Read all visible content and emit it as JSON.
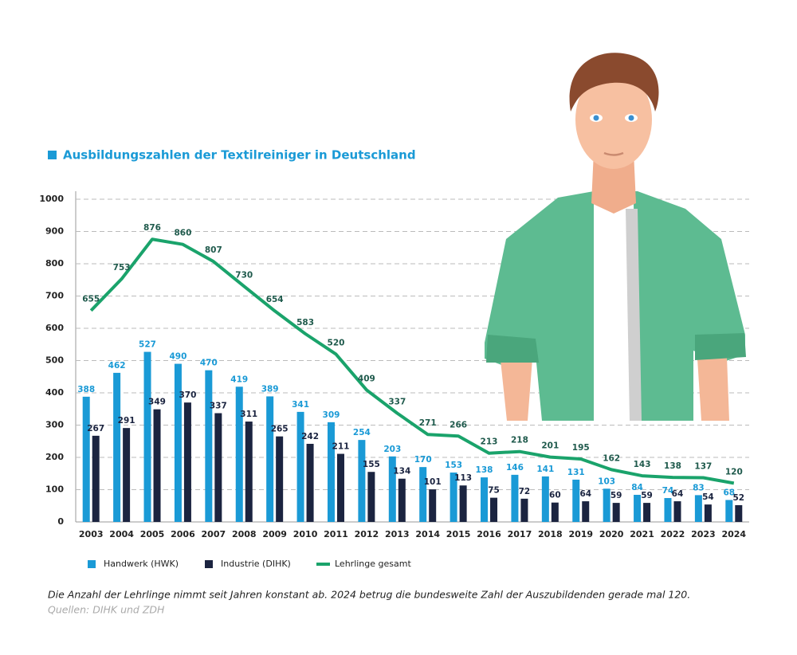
{
  "chart_data": {
    "type": "bar",
    "title": "Ausbildungszahlen der Textilreiniger in Deutschland",
    "categories": [
      "2003",
      "2004",
      "2005",
      "2006",
      "2007",
      "2008",
      "2009",
      "2010",
      "2011",
      "2012",
      "2013",
      "2014",
      "2015",
      "2016",
      "2017",
      "2018",
      "2019",
      "2020",
      "2021",
      "2022",
      "2023",
      "2024"
    ],
    "series": [
      {
        "name": "Handwerk (HWK)",
        "type": "bar",
        "color": "#1a9ad6",
        "values": [
          388,
          462,
          527,
          490,
          470,
          419,
          389,
          341,
          309,
          254,
          203,
          170,
          153,
          138,
          146,
          141,
          131,
          103,
          84,
          74,
          83,
          68
        ]
      },
      {
        "name": "Industrie (DIHK)",
        "type": "bar",
        "color": "#1b2440",
        "values": [
          267,
          291,
          349,
          370,
          337,
          311,
          265,
          242,
          211,
          155,
          134,
          101,
          113,
          75,
          72,
          60,
          64,
          59,
          59,
          64,
          54,
          52
        ]
      },
      {
        "name": "Lehrlinge gesamt",
        "type": "line",
        "color": "#1aa36b",
        "values": [
          655,
          753,
          876,
          860,
          807,
          730,
          654,
          583,
          520,
          409,
          337,
          271,
          266,
          213,
          218,
          201,
          195,
          162,
          143,
          138,
          137,
          120
        ]
      }
    ],
    "ylim": [
      0,
      1000
    ],
    "yticks": [
      0,
      100,
      200,
      300,
      400,
      500,
      600,
      700,
      800,
      900,
      1000
    ],
    "grid": true,
    "caption": "Die Anzahl der Lehrlinge nimmt seit Jahren konstant ab. 2024 betrug die bundesweite Zahl der Auszubildenden gerade mal 120.",
    "source": "Quellen: DIHK und ZDH"
  }
}
